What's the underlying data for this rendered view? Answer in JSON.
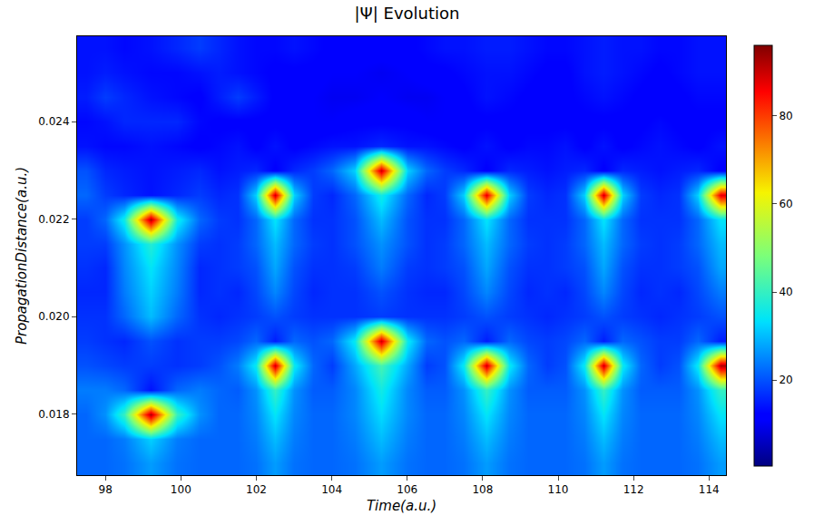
{
  "chart_data": {
    "type": "heatmap",
    "title": "|Ψ| Evolution",
    "x_label": "Time(a.u.)",
    "y_label": "PropagationDistance(a.u.)",
    "x": [
      97.5,
      98.0,
      98.5,
      99.2,
      99.9,
      100.5,
      101.0,
      101.5,
      102.0,
      102.5,
      103.0,
      103.5,
      104.0,
      104.6,
      105.3,
      106.0,
      106.5,
      107.0,
      107.5,
      108.1,
      108.7,
      109.2,
      109.7,
      110.2,
      110.7,
      111.2,
      111.7,
      112.2,
      112.7,
      113.2,
      113.7,
      114.3
    ],
    "y": [
      0.017,
      0.0175,
      0.018,
      0.0185,
      0.019,
      0.0195,
      0.02,
      0.0205,
      0.021,
      0.0215,
      0.022,
      0.0225,
      0.023,
      0.0235,
      0.024,
      0.0245,
      0.025,
      0.0255
    ],
    "cells": [
      [
        22,
        22,
        23,
        27,
        23,
        22,
        22,
        22,
        23,
        27,
        23,
        22,
        22,
        23,
        27,
        23,
        22,
        22,
        23,
        27,
        23,
        22,
        22,
        22,
        23,
        27,
        23,
        22,
        22,
        22,
        23,
        27
      ],
      [
        22,
        22,
        24,
        32,
        24,
        22,
        22,
        22,
        24,
        30,
        24,
        22,
        22,
        24,
        30,
        24,
        22,
        22,
        24,
        30,
        24,
        22,
        22,
        22,
        24,
        30,
        24,
        22,
        22,
        22,
        24,
        30
      ],
      [
        22,
        26,
        40,
        92,
        40,
        26,
        22,
        22,
        25,
        34,
        25,
        22,
        22,
        25,
        33,
        25,
        22,
        22,
        25,
        34,
        25,
        22,
        22,
        22,
        25,
        34,
        25,
        22,
        22,
        22,
        25,
        34
      ],
      [
        24,
        24,
        22,
        14,
        22,
        24,
        22,
        21,
        26,
        40,
        26,
        21,
        21,
        25,
        36,
        25,
        21,
        21,
        26,
        40,
        26,
        21,
        21,
        21,
        26,
        40,
        26,
        21,
        21,
        21,
        26,
        40
      ],
      [
        20,
        19,
        18,
        18,
        17,
        18,
        20,
        24,
        35,
        90,
        35,
        22,
        18,
        28,
        42,
        28,
        18,
        20,
        35,
        90,
        35,
        22,
        18,
        20,
        35,
        90,
        35,
        22,
        18,
        20,
        35,
        92
      ],
      [
        18,
        17,
        16,
        20,
        17,
        18,
        18,
        19,
        22,
        15,
        22,
        20,
        22,
        35,
        90,
        35,
        22,
        20,
        22,
        15,
        22,
        19,
        18,
        19,
        22,
        15,
        22,
        20,
        18,
        18,
        22,
        15
      ],
      [
        17,
        17,
        22,
        30,
        22,
        17,
        16,
        17,
        18,
        20,
        18,
        17,
        17,
        17,
        18,
        17,
        17,
        17,
        18,
        20,
        18,
        17,
        16,
        17,
        18,
        20,
        18,
        17,
        16,
        17,
        18,
        20
      ],
      [
        16,
        16,
        24,
        32,
        24,
        16,
        17,
        16,
        19,
        25,
        19,
        16,
        17,
        17,
        20,
        17,
        16,
        16,
        19,
        25,
        19,
        16,
        17,
        16,
        19,
        25,
        19,
        16,
        17,
        16,
        19,
        24
      ],
      [
        17,
        16,
        25,
        34,
        25,
        16,
        17,
        18,
        20,
        28,
        20,
        17,
        17,
        18,
        24,
        18,
        17,
        18,
        20,
        28,
        20,
        17,
        17,
        18,
        20,
        28,
        20,
        17,
        17,
        18,
        20,
        28
      ],
      [
        18,
        18,
        26,
        38,
        26,
        18,
        17,
        18,
        22,
        30,
        22,
        18,
        17,
        20,
        26,
        20,
        17,
        18,
        22,
        30,
        22,
        18,
        17,
        18,
        22,
        30,
        22,
        18,
        17,
        18,
        22,
        30
      ],
      [
        18,
        22,
        36,
        92,
        36,
        22,
        18,
        17,
        22,
        34,
        22,
        17,
        17,
        20,
        30,
        20,
        17,
        17,
        22,
        34,
        22,
        17,
        17,
        17,
        22,
        34,
        22,
        17,
        17,
        17,
        22,
        34
      ],
      [
        22,
        18,
        16,
        14,
        16,
        18,
        16,
        17,
        32,
        90,
        32,
        18,
        16,
        22,
        36,
        22,
        16,
        18,
        32,
        88,
        32,
        18,
        16,
        17,
        32,
        90,
        32,
        18,
        16,
        17,
        32,
        88
      ],
      [
        20,
        16,
        15,
        14,
        15,
        16,
        14,
        15,
        16,
        12,
        16,
        18,
        22,
        32,
        90,
        32,
        22,
        18,
        16,
        12,
        16,
        15,
        14,
        15,
        16,
        12,
        16,
        15,
        14,
        15,
        16,
        12
      ],
      [
        14,
        13,
        13,
        14,
        13,
        12,
        13,
        14,
        12,
        14,
        12,
        13,
        14,
        14,
        16,
        14,
        14,
        13,
        12,
        14,
        12,
        13,
        13,
        14,
        12,
        14,
        12,
        13,
        14,
        13,
        12,
        14
      ],
      [
        13,
        14,
        16,
        16,
        16,
        13,
        12,
        12,
        12,
        12,
        12,
        11,
        11,
        12,
        12,
        12,
        11,
        11,
        12,
        12,
        12,
        12,
        12,
        12,
        12,
        12,
        12,
        12,
        13,
        12,
        12,
        12
      ],
      [
        15,
        18,
        16,
        14,
        13,
        12,
        15,
        18,
        15,
        12,
        11,
        11,
        10,
        10,
        11,
        10,
        10,
        11,
        12,
        14,
        13,
        12,
        11,
        12,
        13,
        14,
        13,
        12,
        11,
        12,
        13,
        13
      ],
      [
        14,
        15,
        14,
        13,
        13,
        14,
        15,
        14,
        13,
        12,
        12,
        12,
        11,
        11,
        10,
        11,
        12,
        12,
        13,
        14,
        14,
        13,
        12,
        12,
        14,
        15,
        14,
        13,
        12,
        13,
        14,
        14
      ],
      [
        14,
        14,
        13,
        14,
        16,
        18,
        16,
        14,
        13,
        13,
        14,
        13,
        12,
        12,
        12,
        12,
        13,
        14,
        14,
        15,
        15,
        14,
        13,
        13,
        14,
        15,
        14,
        14,
        13,
        13,
        14,
        14
      ]
    ],
    "xlim": [
      97.25,
      114.45
    ],
    "xticks": [
      98,
      100,
      102,
      104,
      106,
      108,
      110,
      112,
      114
    ],
    "ylim": [
      0.01675,
      0.02575
    ],
    "yticks": [
      0.018,
      {
        "value": 0.02,
        "label": "0.020"
      },
      0.022,
      0.024
    ],
    "colorbar_range": [
      0.5,
      96
    ],
    "colorbar_ticks": [
      20,
      40,
      60,
      80
    ],
    "color": "jet",
    "grid": false
  }
}
